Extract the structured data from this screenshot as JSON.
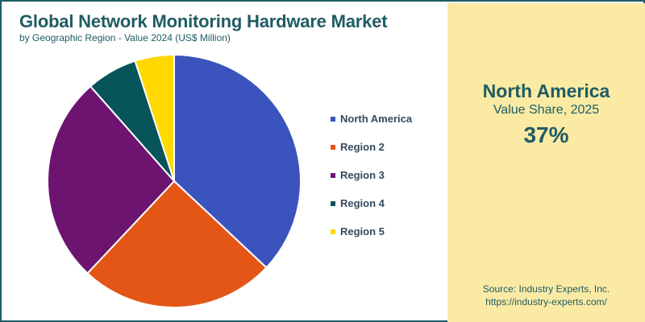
{
  "chart_data": {
    "type": "pie",
    "title": "Global Network Monitoring Hardware Market",
    "subtitle": "by Geographic Region - Value 2024 (US$ Million)",
    "categories": [
      "North America",
      "Region 2",
      "Region 3",
      "Region 4",
      "Region 5"
    ],
    "values": [
      37,
      25,
      26.5,
      6.5,
      5
    ],
    "colors": [
      "#3a53bd",
      "#e45616",
      "#6d1470",
      "#07545a",
      "#ffd900"
    ],
    "legend_position": "right"
  },
  "highlight": {
    "name": "North America",
    "label": "Value Share, 2025",
    "value": "37%"
  },
  "source": {
    "line1": "Source: Industry Experts, Inc.",
    "line2": "https://industry-experts.com/"
  }
}
